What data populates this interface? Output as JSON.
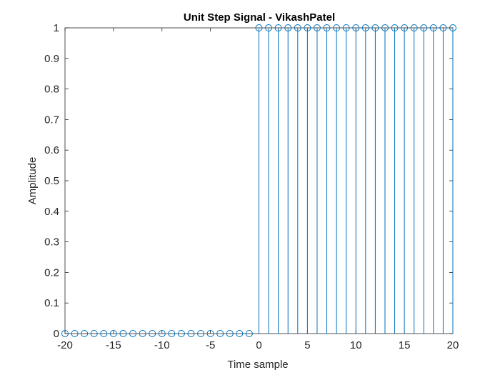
{
  "chart_data": {
    "type": "stem",
    "title": "Unit Step Signal - VikashPatel",
    "xlabel": "Time sample",
    "ylabel": "Amplitude",
    "xlim": [
      -20,
      20
    ],
    "ylim": [
      0,
      1
    ],
    "xticks": [
      -20,
      -15,
      -10,
      -5,
      0,
      5,
      10,
      15,
      20
    ],
    "yticks": [
      0,
      0.1,
      0.2,
      0.3,
      0.4,
      0.5,
      0.6,
      0.7,
      0.8,
      0.9,
      1
    ],
    "grid": false,
    "series": [
      {
        "color": "#0072BD",
        "marker": "circle-open",
        "x": [
          -20,
          -19,
          -18,
          -17,
          -16,
          -15,
          -14,
          -13,
          -12,
          -11,
          -10,
          -9,
          -8,
          -7,
          -6,
          -5,
          -4,
          -3,
          -2,
          -1,
          0,
          1,
          2,
          3,
          4,
          5,
          6,
          7,
          8,
          9,
          10,
          11,
          12,
          13,
          14,
          15,
          16,
          17,
          18,
          19,
          20
        ],
        "y": [
          0,
          0,
          0,
          0,
          0,
          0,
          0,
          0,
          0,
          0,
          0,
          0,
          0,
          0,
          0,
          0,
          0,
          0,
          0,
          0,
          1,
          1,
          1,
          1,
          1,
          1,
          1,
          1,
          1,
          1,
          1,
          1,
          1,
          1,
          1,
          1,
          1,
          1,
          1,
          1,
          1
        ]
      }
    ]
  }
}
